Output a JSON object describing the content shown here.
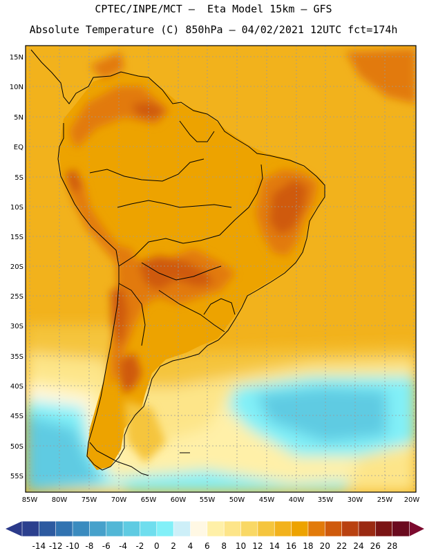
{
  "title": {
    "line1": "CPTEC/INPE/MCT –  Eta Model 15km – GFS",
    "line2": "Absolute Temperature (C) 850hPa – 04/02/2021 12UTC fct=174h"
  },
  "map": {
    "lat_labels": [
      "15N",
      "10N",
      "5N",
      "EQ",
      "5S",
      "10S",
      "15S",
      "20S",
      "25S",
      "30S",
      "35S",
      "40S",
      "45S",
      "50S",
      "55S"
    ],
    "lon_labels": [
      "85W",
      "80W",
      "75W",
      "70W",
      "65W",
      "60W",
      "55W",
      "50W",
      "45W",
      "40W",
      "35W",
      "30W",
      "25W",
      "20W"
    ],
    "region": "South America",
    "variable": "Absolute Temperature (C) 850hPa"
  },
  "legend": {
    "ticks": [
      "-14",
      "-12",
      "-10",
      "-8",
      "-6",
      "-4",
      "-2",
      "0",
      "2",
      "4",
      "6",
      "8",
      "10",
      "12",
      "14",
      "16",
      "18",
      "20",
      "22",
      "24",
      "26",
      "28"
    ],
    "colors": [
      "#2b3f8e",
      "#2d5aa0",
      "#3173b1",
      "#3a8bbf",
      "#46a1cb",
      "#52b7d6",
      "#5fcbe2",
      "#6fdeee",
      "#82f0f8",
      "#cdeff8",
      "#fff8e4",
      "#fff0a8",
      "#fde589",
      "#f9d865",
      "#f5c53e",
      "#f2b21c",
      "#eda300",
      "#e27a0a",
      "#cf5a0c",
      "#b94110",
      "#9a2a12",
      "#7a1414",
      "#6a0a1e"
    ],
    "left_arrow_color": "#2b3a8a",
    "right_arrow_color": "#7c0a2e"
  }
}
